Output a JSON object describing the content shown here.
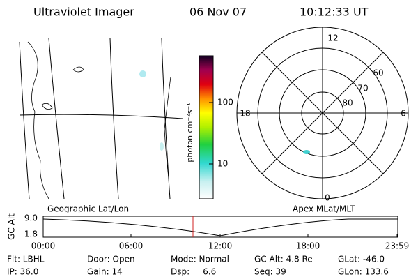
{
  "header": {
    "title": "Ultraviolet Imager",
    "date": "06 Nov 07",
    "time": "10:12:33 UT"
  },
  "colorbar": {
    "label": "photon cm⁻²s⁻¹",
    "ticks": [
      "100",
      "10"
    ]
  },
  "polar": {
    "hours": [
      "12",
      "18",
      "6",
      "0"
    ],
    "latitudes": [
      "60",
      "70",
      "80"
    ]
  },
  "timeline": {
    "left_title": "Geographic Lat/Lon",
    "right_title": "Apex MLat/MLT",
    "ylabel": "GC Alt",
    "yticks": [
      "9.0",
      "1.8"
    ],
    "xticks": [
      "00:00",
      "06:00",
      "12:00",
      "18:00",
      "23:59"
    ]
  },
  "footer": {
    "rows": [
      [
        "Flt: LBHL",
        "Door: Open",
        "Mode: Normal",
        "GC Alt: 4.8 Re",
        "GLat: -46.0"
      ],
      [
        "IP: 36.0",
        "Gain: 14",
        "Dsp:     6.6",
        "Seq: 39",
        "GLon: 133.6"
      ]
    ]
  }
}
